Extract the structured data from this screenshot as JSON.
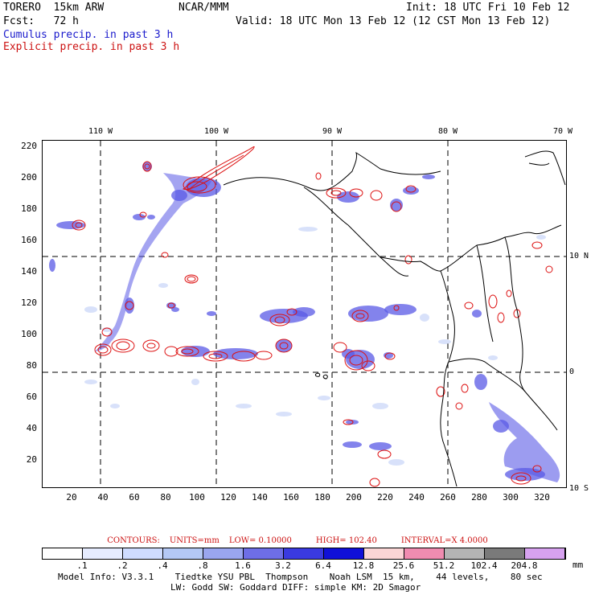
{
  "header": {
    "model": "TORERO  15km ARW",
    "center": "NCAR/MMM",
    "init": "Init: 18 UTC Fri 10 Feb 12",
    "fcst": "Fcst:   72 h",
    "valid": "Valid: 18 UTC Mon 13 Feb 12 (12 CST Mon 13 Feb 12)",
    "cumulus_label": "Cumulus precip. in past 3 h",
    "explicit_label": "Explicit precip. in past 3 h"
  },
  "axes": {
    "top_lon": [
      "110 W",
      "100 W",
      "90 W",
      "80 W",
      "70 W"
    ],
    "right_lat": [
      "10 N",
      "0",
      "10 S"
    ],
    "x_ticks": [
      "20",
      "40",
      "60",
      "80",
      "100",
      "120",
      "140",
      "160",
      "180",
      "200",
      "220",
      "240",
      "260",
      "280",
      "300",
      "320"
    ],
    "y_ticks": [
      "220",
      "200",
      "180",
      "160",
      "140",
      "120",
      "100",
      "80",
      "60",
      "40",
      "20"
    ]
  },
  "contours": {
    "label": "CONTOURS:",
    "units": "UNITS=mm",
    "low": "LOW= 0.10000",
    "high": "HIGH= 102.40",
    "interval": "INTERVAL=X  4.0000"
  },
  "colorbar": {
    "colors": [
      "#ffffff",
      "#ffffff",
      "#e6ecff",
      "#cfdcff",
      "#b4c8f5",
      "#9aa6f0",
      "#6e6ee6",
      "#3a3ae0",
      "#1010d8",
      "#fbd6d6",
      "#f08cb0",
      "#b4b4b4",
      "#7a7a7a",
      "#d7a2f0"
    ],
    "labels": [
      ".1",
      ".2",
      ".4",
      ".8",
      "1.6",
      "3.2",
      "6.4",
      "12.8",
      "25.6",
      "51.2",
      "102.4",
      "204.8"
    ],
    "unit": "mm"
  },
  "footer": {
    "line1": "Model Info: V3.3.1    Tiedtke YSU PBL  Thompson    Noah LSM  15 km,    44 levels,    80 sec",
    "line2": "LW: Godd SW: Goddard DIFF: simple KM: 2D Smagor"
  },
  "colors": {
    "cumulus": "#1a1acc",
    "explicit": "#cc1111",
    "coast": "#000000"
  }
}
